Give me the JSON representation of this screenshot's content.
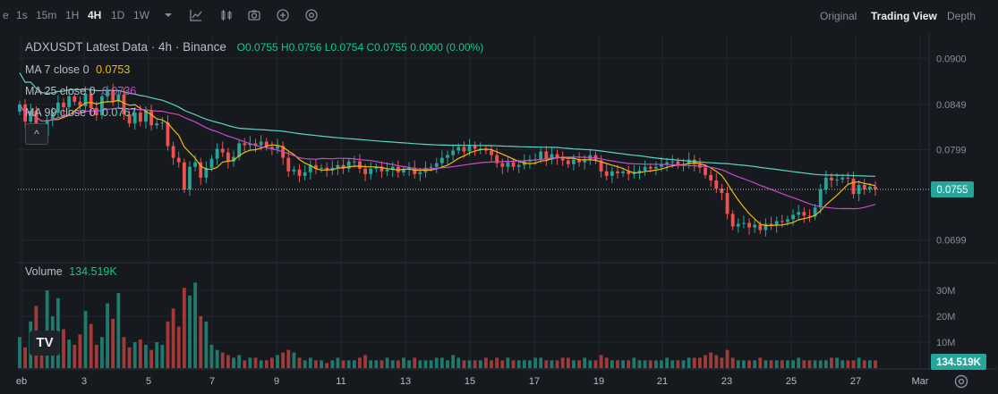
{
  "toolbar": {
    "left_cut": "e",
    "intervals": [
      "1s",
      "15m",
      "1H",
      "4H",
      "1D",
      "1W"
    ],
    "active_interval": "4H",
    "icons": [
      "chevron-down-icon",
      "indicator-icon",
      "candle-type-icon",
      "camera-icon",
      "plus-circle-icon",
      "settings-icon"
    ],
    "views": [
      "Original",
      "Trading View",
      "Depth"
    ],
    "active_view": "Trading View"
  },
  "legend": {
    "title": "ADXUSDT Latest Data · 4h · Binance",
    "ohlc": {
      "o": "O0.0755",
      "h": "H0.0756",
      "l": "L0.0754",
      "c": "C0.0755",
      "chg": "0.0000 (0.00%)"
    },
    "ma7": {
      "label": "MA 7 close 0",
      "value": "0.0753",
      "color": "#f0b90b"
    },
    "ma25": {
      "label": "MA 25 close 0",
      "value": "0.0736",
      "color": "#c94bc9"
    },
    "ma99": {
      "label": "MA 99 close 0",
      "value": "0.0767",
      "color": "#5fd3c3"
    },
    "volume_label": "Volume",
    "volume_value": "134.519K",
    "collapse_glyph": "^"
  },
  "logo_text": "TV",
  "chart_data": {
    "type": "candlestick",
    "price_axis_ticks": [
      "0.0900",
      "0.0849",
      "0.0799",
      "0.0699"
    ],
    "current_price": "0.0755",
    "volume_axis_ticks": [
      "30M",
      "20M",
      "10M"
    ],
    "current_volume": "134.519K",
    "x_ticks": [
      "eb",
      "3",
      "5",
      "7",
      "9",
      "11",
      "13",
      "15",
      "17",
      "19",
      "21",
      "23",
      "25",
      "27",
      "Mar"
    ],
    "ylim": [
      0.0676,
      0.0925
    ],
    "volume_max_M": 40,
    "colors": {
      "up": "#26a69a",
      "down": "#ef5350",
      "ma7": "#f0b90b",
      "ma25": "#c94bc9",
      "ma99": "#5fd3c3"
    },
    "candles_close": [
      0.0849,
      0.083,
      0.0842,
      0.0818,
      0.0814,
      0.0832,
      0.084,
      0.0851,
      0.0846,
      0.0858,
      0.0852,
      0.0847,
      0.0861,
      0.0845,
      0.0837,
      0.0858,
      0.0864,
      0.0852,
      0.086,
      0.0838,
      0.0828,
      0.084,
      0.083,
      0.0842,
      0.0826,
      0.0828,
      0.0829,
      0.0803,
      0.079,
      0.0785,
      0.0755,
      0.078,
      0.0785,
      0.0768,
      0.0779,
      0.0789,
      0.08,
      0.0796,
      0.0786,
      0.0791,
      0.0806,
      0.0804,
      0.0806,
      0.0804,
      0.0808,
      0.0802,
      0.08,
      0.0803,
      0.079,
      0.0775,
      0.0777,
      0.077,
      0.0774,
      0.0782,
      0.0778,
      0.0779,
      0.0776,
      0.0779,
      0.0782,
      0.0778,
      0.0786,
      0.0786,
      0.0778,
      0.0772,
      0.0778,
      0.078,
      0.0775,
      0.0777,
      0.078,
      0.0774,
      0.0777,
      0.0779,
      0.0772,
      0.0774,
      0.0779,
      0.078,
      0.0784,
      0.079,
      0.0793,
      0.0798,
      0.0802,
      0.0797,
      0.0803,
      0.08,
      0.08,
      0.0798,
      0.0793,
      0.0784,
      0.078,
      0.0785,
      0.078,
      0.0782,
      0.0786,
      0.0788,
      0.0788,
      0.0797,
      0.0788,
      0.0794,
      0.079,
      0.0787,
      0.0783,
      0.0788,
      0.0785,
      0.0788,
      0.0793,
      0.0787,
      0.0775,
      0.077,
      0.0775,
      0.0773,
      0.0775,
      0.0772,
      0.0774,
      0.0776,
      0.078,
      0.0778,
      0.078,
      0.0783,
      0.0785,
      0.0786,
      0.0782,
      0.0783,
      0.0788,
      0.0783,
      0.0779,
      0.0771,
      0.0765,
      0.0756,
      0.0751,
      0.0728,
      0.0714,
      0.0717,
      0.0718,
      0.0713,
      0.0716,
      0.071,
      0.0717,
      0.0715,
      0.072,
      0.0719,
      0.0722,
      0.0727,
      0.073,
      0.0726,
      0.0725,
      0.0735,
      0.0755,
      0.0768,
      0.0765,
      0.0766,
      0.0768,
      0.0767,
      0.075,
      0.076,
      0.0755,
      0.0758,
      0.0755
    ],
    "volume_M": [
      12,
      8,
      18,
      24,
      10,
      30,
      20,
      27,
      15,
      11,
      9,
      13,
      22,
      17,
      9,
      12,
      25,
      19,
      29,
      12,
      8,
      10,
      11,
      9,
      7,
      10,
      9,
      18,
      23,
      16,
      31,
      28,
      33,
      20,
      18,
      9,
      7,
      6,
      5,
      4,
      5,
      3,
      4,
      4,
      3,
      3,
      4,
      5,
      6,
      7,
      6,
      4,
      3,
      4,
      3,
      3,
      2,
      3,
      4,
      3,
      3,
      3,
      4,
      5,
      3,
      3,
      3,
      4,
      3,
      3,
      4,
      3,
      4,
      3,
      3,
      3,
      4,
      4,
      3,
      5,
      4,
      3,
      3,
      3,
      3,
      4,
      3,
      4,
      3,
      4,
      3,
      3,
      3,
      3,
      4,
      4,
      3,
      3,
      3,
      4,
      4,
      3,
      3,
      4,
      3,
      3,
      5,
      4,
      3,
      3,
      3,
      3,
      4,
      3,
      3,
      3,
      3,
      3,
      4,
      3,
      3,
      3,
      4,
      4,
      4,
      5,
      6,
      5,
      4,
      7,
      4,
      3,
      3,
      3,
      3,
      4,
      3,
      3,
      3,
      3,
      3,
      3,
      4,
      3,
      3,
      3,
      3,
      3,
      4,
      4,
      3,
      3,
      3,
      4,
      3,
      3
    ]
  }
}
